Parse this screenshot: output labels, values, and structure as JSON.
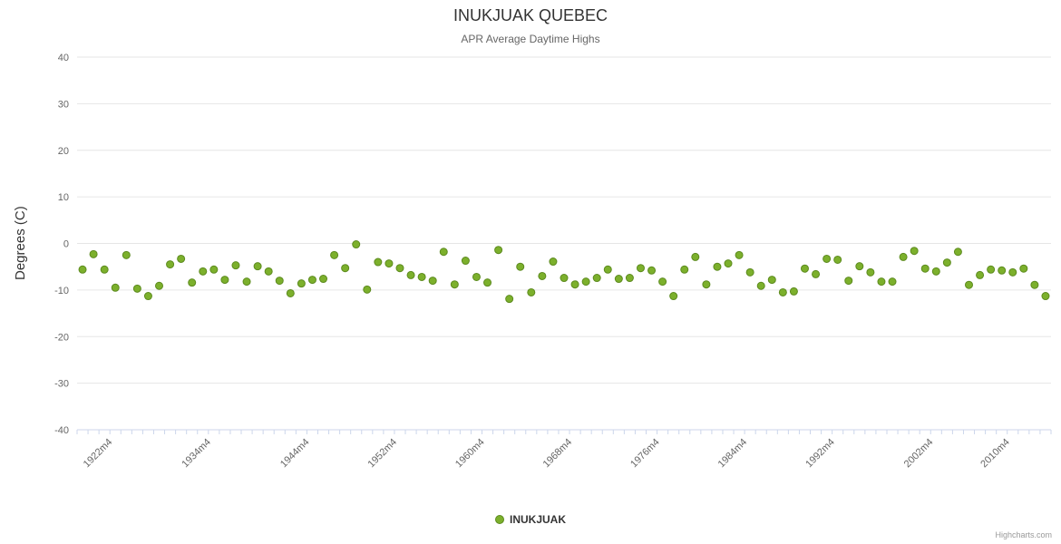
{
  "chart_data": {
    "type": "scatter",
    "title": "INUKJUAK QUEBEC",
    "subtitle": "APR Average Daytime Highs",
    "ylabel": "Degrees (C)",
    "ylim": [
      -40,
      40
    ],
    "y_tick_step": 10,
    "grid": true,
    "legend_position": "bottom-center",
    "series": [
      {
        "name": "INUKJUAK",
        "marker_color": "#7cb02c",
        "marker_border_color": "#5c8a1e"
      }
    ],
    "categories": [
      "1919m4",
      "1920m4",
      "1921m4",
      "1922m4",
      "1923m4",
      "1925m4",
      "1926m4",
      "1928m4",
      "1929m4",
      "1930m4",
      "1931m4",
      "1932m4",
      "1934m4",
      "1935m4",
      "1936m4",
      "1937m4",
      "1938m4",
      "1939m4",
      "1941m4",
      "1942m4",
      "1943m4",
      "1944m4",
      "1945m4",
      "1946m4",
      "1947m4",
      "1948m4",
      "1949m4",
      "1950m4",
      "1951m4",
      "1952m4",
      "1953m4",
      "1954m4",
      "1955m4",
      "1956m4",
      "1957m4",
      "1958m4",
      "1959m4",
      "1960m4",
      "1961m4",
      "1962m4",
      "1963m4",
      "1964m4",
      "1965m4",
      "1966m4",
      "1967m4",
      "1968m4",
      "1969m4",
      "1970m4",
      "1971m4",
      "1972m4",
      "1973m4",
      "1974m4",
      "1975m4",
      "1976m4",
      "1977m4",
      "1978m4",
      "1979m4",
      "1980m4",
      "1981m4",
      "1982m4",
      "1983m4",
      "1984m4",
      "1985m4",
      "1986m4",
      "1987m4",
      "1988m4",
      "1989m4",
      "1990m4",
      "1991m4",
      "1992m4",
      "1993m4",
      "1994m4",
      "1995m4",
      "1996m4",
      "1998m4",
      "1999m4",
      "2000m4",
      "2001m4",
      "2002m4",
      "2003m4",
      "2004m4",
      "2006m4",
      "2007m4",
      "2008m4",
      "2009m4",
      "2010m4",
      "2011m4",
      "2012m4",
      "2013m4"
    ],
    "values": [
      -5.6,
      -2.3,
      -5.6,
      -9.5,
      -2.5,
      -9.7,
      -11.3,
      -9.1,
      -4.5,
      -3.3,
      -8.4,
      -6.0,
      -5.6,
      -7.8,
      -4.7,
      -8.2,
      -4.9,
      -6.0,
      -8.0,
      -10.7,
      -8.6,
      -7.8,
      -7.6,
      -2.5,
      -5.3,
      -0.2,
      -9.9,
      -4.0,
      -4.3,
      -5.3,
      -6.8,
      -7.2,
      -8.0,
      -1.8,
      -8.8,
      -3.7,
      -7.2,
      -8.4,
      -1.4,
      -11.9,
      -5.0,
      -10.5,
      -7.0,
      -3.9,
      -7.4,
      -8.8,
      -8.2,
      -7.4,
      -5.6,
      -7.6,
      -7.4,
      -5.3,
      -5.8,
      -8.2,
      -11.3,
      -5.6,
      -2.9,
      -8.8,
      -5.0,
      -4.3,
      -2.5,
      -6.2,
      -9.1,
      -7.8,
      -10.5,
      -10.3,
      -5.4,
      -6.6,
      -3.3,
      -3.5,
      -8.0,
      -4.9,
      -6.2,
      -8.2,
      -8.2,
      -2.9,
      -1.6,
      -5.4,
      -6.0,
      -4.1,
      -1.8,
      -8.9,
      -6.8,
      -5.6,
      -5.8,
      -6.2,
      -5.4,
      -8.9,
      -11.3
    ],
    "x_tick_indices": [
      3,
      12,
      21,
      29,
      37,
      45,
      53,
      61,
      69,
      78,
      85
    ],
    "x_tick_labels": [
      "1922m4",
      "1934m4",
      "1944m4",
      "1952m4",
      "1960m4",
      "1968m4",
      "1976m4",
      "1984m4",
      "1992m4",
      "2002m4",
      "2010m4"
    ],
    "colors": {
      "grid_line": "#e6e6e6",
      "axis_line": "#ccd6eb",
      "tick_mark": "#ccd6eb",
      "axis_label": "#666666",
      "title": "#333333",
      "subtitle": "#666666"
    }
  },
  "legend": {
    "label": "INUKJUAK"
  },
  "credits": {
    "label": "Highcharts.com"
  }
}
